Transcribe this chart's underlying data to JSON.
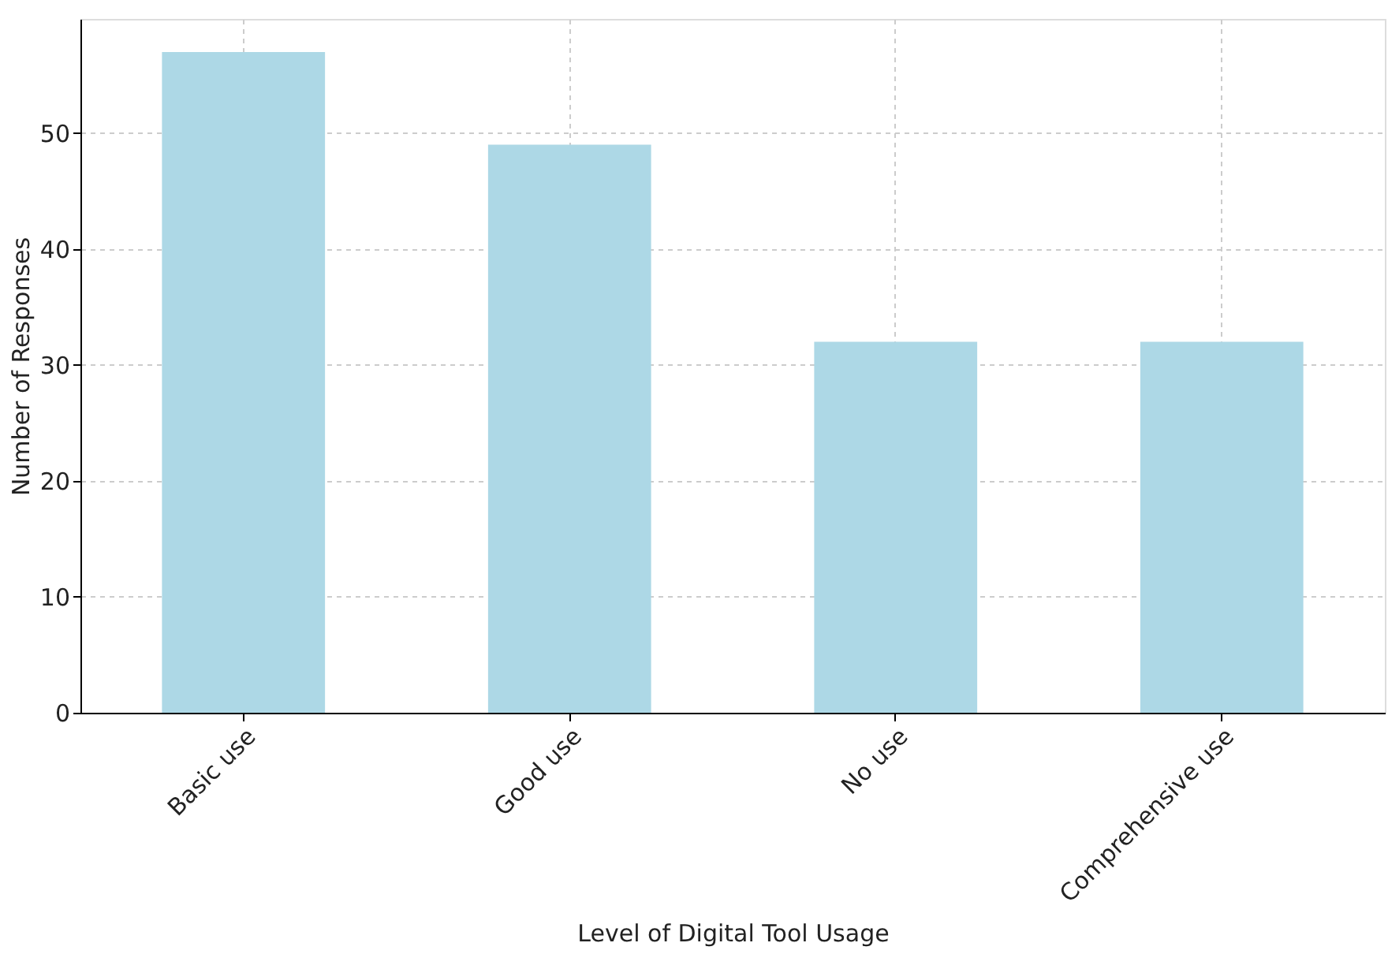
{
  "chart_data": {
    "type": "bar",
    "xlabel": "Level of Digital Tool Usage",
    "ylabel": "Number of Responses",
    "categories": [
      "Basic use",
      "Good use",
      "No use",
      "Comprehensive use"
    ],
    "values": [
      57,
      49,
      32,
      32
    ],
    "color": "#add8e6",
    "ylim": [
      0,
      59.85
    ],
    "yticks": [
      0,
      10,
      20,
      30,
      40,
      50
    ],
    "grid": true
  }
}
